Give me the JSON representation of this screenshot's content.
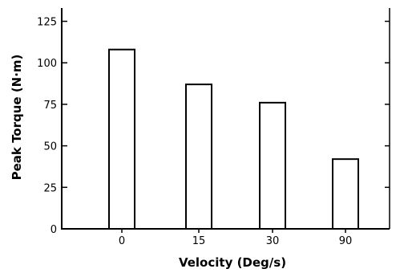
{
  "chart_data": {
    "type": "bar",
    "title": "",
    "xlabel": "Velocity (Deg/s)",
    "ylabel": "Peak Torque (N·m)",
    "categories": [
      "0",
      "15",
      "30",
      "90"
    ],
    "values": [
      108,
      87,
      76,
      42
    ],
    "ylim": [
      0,
      133
    ],
    "yticks": [
      0,
      25,
      50,
      75,
      100,
      125
    ],
    "grid": false,
    "bar_fill": "#ffffff",
    "bar_stroke": "#000000"
  }
}
